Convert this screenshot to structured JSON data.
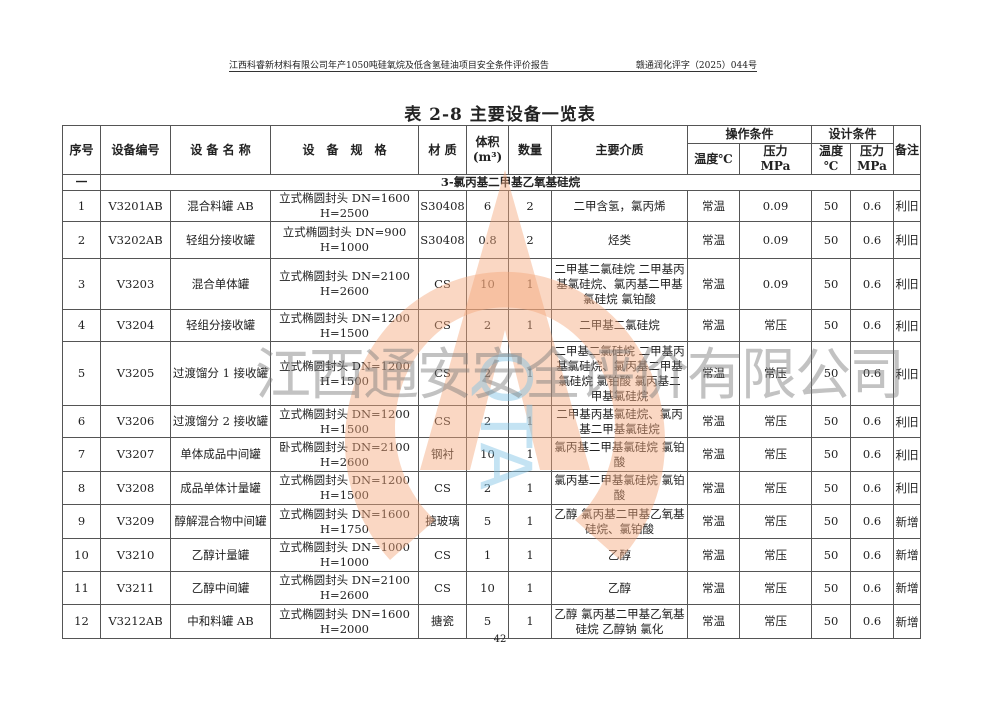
{
  "header": {
    "report_title": "江西科睿新材料有限公司年产1050吨硅氧烷及低含氢硅油项目安全条件评价报告",
    "doc_number": "赣通润化评字（2025）044号"
  },
  "table_title": "表 2-8  主要设备一览表",
  "columns": {
    "no": "序号",
    "code": "设备编号",
    "name": "设 备 名 称",
    "spec": "设　备　规　格",
    "material": "材 质",
    "volume": "体积",
    "volume_unit": "(m³)",
    "qty": "数量",
    "medium": "主要介质",
    "op_group": "操作条件",
    "op_temp": "温度℃",
    "op_press": "压力",
    "op_press_unit": "MPa",
    "design_group": "设计条件",
    "design_temp": "温度",
    "design_temp_unit": "℃",
    "design_press": "压力",
    "design_press_unit": "MPa",
    "remark": "备注"
  },
  "section": {
    "no": "一",
    "name": "3-氯丙基二甲基乙氧基硅烷"
  },
  "rows": [
    {
      "no": "1",
      "code": "V3201AB",
      "name": "混合料罐 AB",
      "spec": "立式椭圆封头 DN=1600 H=2500",
      "material": "S30408",
      "volume": "6",
      "qty": "2",
      "medium": "二甲含氢，氯丙烯",
      "op_temp": "常温",
      "op_press": "0.09",
      "d_temp": "50",
      "d_press": "0.6",
      "remark": "利旧"
    },
    {
      "no": "2",
      "code": "V3202AB",
      "name": "轻组分接收罐",
      "spec": "立式椭圆封头 DN=900 H=1000",
      "material": "S30408",
      "volume": "0.8",
      "qty": "2",
      "medium": "烃类",
      "op_temp": "常温",
      "op_press": "0.09",
      "d_temp": "50",
      "d_press": "0.6",
      "remark": "利旧"
    },
    {
      "no": "3",
      "code": "V3203",
      "name": "混合单体罐",
      "spec": "立式椭圆封头 DN=2100 H=2600",
      "material": "CS",
      "volume": "10",
      "qty": "1",
      "medium": "二甲基二氯硅烷 二甲基丙基氯硅烷、氯丙基二甲基氯硅烷 氯铂酸",
      "op_temp": "常温",
      "op_press": "0.09",
      "d_temp": "50",
      "d_press": "0.6",
      "remark": "利旧"
    },
    {
      "no": "4",
      "code": "V3204",
      "name": "轻组分接收罐",
      "spec": "立式椭圆封头 DN=1200 H=1500",
      "material": "CS",
      "volume": "2",
      "qty": "1",
      "medium": "二甲基二氯硅烷",
      "op_temp": "常温",
      "op_press": "常压",
      "d_temp": "50",
      "d_press": "0.6",
      "remark": "利旧"
    },
    {
      "no": "5",
      "code": "V3205",
      "name": "过渡馏分 1 接收罐",
      "spec": "立式椭圆封头 DN=1200 H=1500",
      "material": "CS",
      "volume": "2",
      "qty": "1",
      "medium": "二甲基二氯硅烷 二甲基丙基氯硅烷、氯丙基二甲基氯硅烷 氯铂酸 氯丙基二甲基氯硅烷",
      "op_temp": "常温",
      "op_press": "常压",
      "d_temp": "50",
      "d_press": "0.6",
      "remark": "利旧"
    },
    {
      "no": "6",
      "code": "V3206",
      "name": "过渡馏分 2 接收罐",
      "spec": "立式椭圆封头 DN=1200 H=1500",
      "material": "CS",
      "volume": "2",
      "qty": "1",
      "medium": "二甲基丙基氯硅烷、氯丙基二甲基氯硅烷",
      "op_temp": "常温",
      "op_press": "常压",
      "d_temp": "50",
      "d_press": "0.6",
      "remark": "利旧"
    },
    {
      "no": "7",
      "code": "V3207",
      "name": "单体成品中间罐",
      "spec": "卧式椭圆封头 DN=2100 H=2600",
      "material": "钢衬",
      "volume": "10",
      "qty": "1",
      "medium": "氯丙基二甲基氯硅烷 氯铂酸",
      "op_temp": "常温",
      "op_press": "常压",
      "d_temp": "50",
      "d_press": "0.6",
      "remark": "利旧"
    },
    {
      "no": "8",
      "code": "V3208",
      "name": "成品单体计量罐",
      "spec": "立式椭圆封头 DN=1200 H=1500",
      "material": "CS",
      "volume": "2",
      "qty": "1",
      "medium": "氯丙基二甲基氯硅烷 氯铂酸",
      "op_temp": "常温",
      "op_press": "常压",
      "d_temp": "50",
      "d_press": "0.6",
      "remark": "利旧"
    },
    {
      "no": "9",
      "code": "V3209",
      "name": "醇解混合物中间罐",
      "spec": "立式椭圆封头 DN=1600 H=1750",
      "material": "搪玻璃",
      "volume": "5",
      "qty": "1",
      "medium": "乙醇 氯丙基二甲基乙氧基硅烷、氯铂酸",
      "op_temp": "常温",
      "op_press": "常压",
      "d_temp": "50",
      "d_press": "0.6",
      "remark": "新增"
    },
    {
      "no": "10",
      "code": "V3210",
      "name": "乙醇计量罐",
      "spec": "立式椭圆封头 DN=1000 H=1000",
      "material": "CS",
      "volume": "1",
      "qty": "1",
      "medium": "乙醇",
      "op_temp": "常温",
      "op_press": "常压",
      "d_temp": "50",
      "d_press": "0.6",
      "remark": "新增"
    },
    {
      "no": "11",
      "code": "V3211",
      "name": "乙醇中间罐",
      "spec": "立式椭圆封头 DN=2100 H=2600",
      "material": "CS",
      "volume": "10",
      "qty": "1",
      "medium": "乙醇",
      "op_temp": "常温",
      "op_press": "常压",
      "d_temp": "50",
      "d_press": "0.6",
      "remark": "新增"
    },
    {
      "no": "12",
      "code": "V3212AB",
      "name": "中和料罐 AB",
      "spec": "立式椭圆封头 DN=1600 H=2000",
      "material": "搪瓷",
      "volume": "5",
      "qty": "1",
      "medium": "乙醇 氯丙基二甲基乙氧基硅烷 乙醇钠 氯化",
      "op_temp": "常温",
      "op_press": "常压",
      "d_temp": "50",
      "d_press": "0.6",
      "remark": "新增"
    }
  ],
  "page_number": "42",
  "watermark": {
    "text": "江西通安安全评价有限公司",
    "logo_letters": "QTA",
    "colors": {
      "arch": "#f4a77a",
      "letters": "#7ec3e6",
      "text": "#808080"
    }
  }
}
